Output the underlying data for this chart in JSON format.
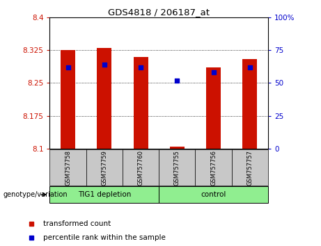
{
  "title": "GDS4818 / 206187_at",
  "samples": [
    "GSM757758",
    "GSM757759",
    "GSM757760",
    "GSM757755",
    "GSM757756",
    "GSM757757"
  ],
  "group_labels": [
    "TIG1 depletion",
    "control"
  ],
  "red_values": [
    8.325,
    8.33,
    8.31,
    8.105,
    8.285,
    8.305
  ],
  "blue_percentile": [
    62,
    64,
    62,
    52,
    58,
    62
  ],
  "y_min": 8.1,
  "y_max": 8.4,
  "y_ticks": [
    8.1,
    8.175,
    8.25,
    8.325,
    8.4
  ],
  "y_tick_labels": [
    "8.1",
    "8.175",
    "8.25",
    "8.325",
    "8.4"
  ],
  "y2_ticks": [
    0,
    25,
    50,
    75,
    100
  ],
  "y2_tick_labels": [
    "0",
    "25",
    "50",
    "75",
    "100%"
  ],
  "bar_color": "#CC1100",
  "dot_color": "#0000CC",
  "bar_width": 0.4,
  "left_color": "#CC1100",
  "right_color": "#0000CC",
  "background_label": "#C8C8C8",
  "background_group": "#90EE90",
  "legend_red_label": "transformed count",
  "legend_blue_label": "percentile rank within the sample",
  "genotype_label": "genotype/variation"
}
